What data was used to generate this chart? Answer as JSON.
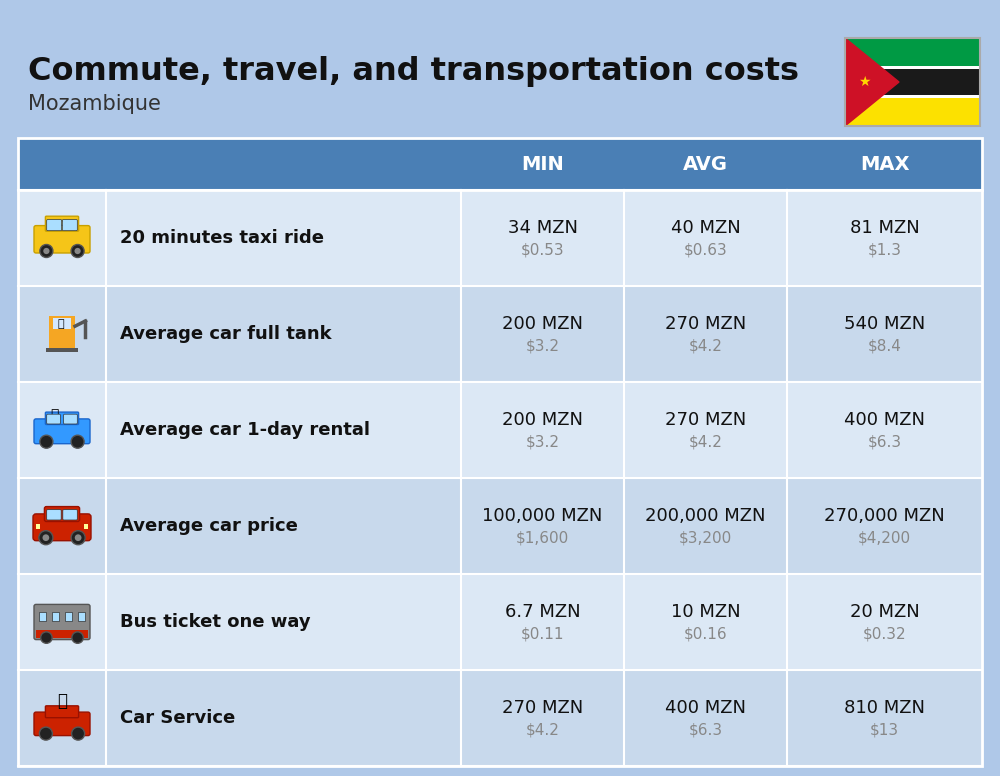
{
  "title": "Commute, travel, and transportation costs",
  "subtitle": "Mozambique",
  "background_color": "#afc8e8",
  "header_bg_color": "#4a7fb5",
  "header_text_color": "#ffffff",
  "col_headers": [
    "MIN",
    "AVG",
    "MAX"
  ],
  "rows": [
    {
      "label": "20 minutes taxi ride",
      "min_mzn": "34 MZN",
      "min_usd": "$0.53",
      "avg_mzn": "40 MZN",
      "avg_usd": "$0.63",
      "max_mzn": "81 MZN",
      "max_usd": "$1.3"
    },
    {
      "label": "Average car full tank",
      "min_mzn": "200 MZN",
      "min_usd": "$3.2",
      "avg_mzn": "270 MZN",
      "avg_usd": "$4.2",
      "max_mzn": "540 MZN",
      "max_usd": "$8.4"
    },
    {
      "label": "Average car 1-day rental",
      "min_mzn": "200 MZN",
      "min_usd": "$3.2",
      "avg_mzn": "270 MZN",
      "avg_usd": "$4.2",
      "max_mzn": "400 MZN",
      "max_usd": "$6.3"
    },
    {
      "label": "Average car price",
      "min_mzn": "100,000 MZN",
      "min_usd": "$1,600",
      "avg_mzn": "200,000 MZN",
      "avg_usd": "$3,200",
      "max_mzn": "270,000 MZN",
      "max_usd": "$4,200"
    },
    {
      "label": "Bus ticket one way",
      "min_mzn": "6.7 MZN",
      "min_usd": "$0.11",
      "avg_mzn": "10 MZN",
      "avg_usd": "$0.16",
      "max_mzn": "20 MZN",
      "max_usd": "$0.32"
    },
    {
      "label": "Car Service",
      "min_mzn": "270 MZN",
      "min_usd": "$4.2",
      "avg_mzn": "400 MZN",
      "avg_usd": "$6.3",
      "max_mzn": "810 MZN",
      "max_usd": "$13"
    }
  ],
  "row_colors": [
    "#dce8f5",
    "#c8d9ec",
    "#dce8f5",
    "#c8d9ec",
    "#dce8f5",
    "#c8d9ec"
  ],
  "title_fontsize": 23,
  "subtitle_fontsize": 15,
  "header_fontsize": 14,
  "label_fontsize": 13,
  "value_fontsize": 13,
  "usd_fontsize": 11,
  "flag": {
    "green": "#009A44",
    "black": "#1a1a1a",
    "yellow": "#FCE100",
    "red": "#CE1126",
    "white": "#FFFFFF"
  }
}
